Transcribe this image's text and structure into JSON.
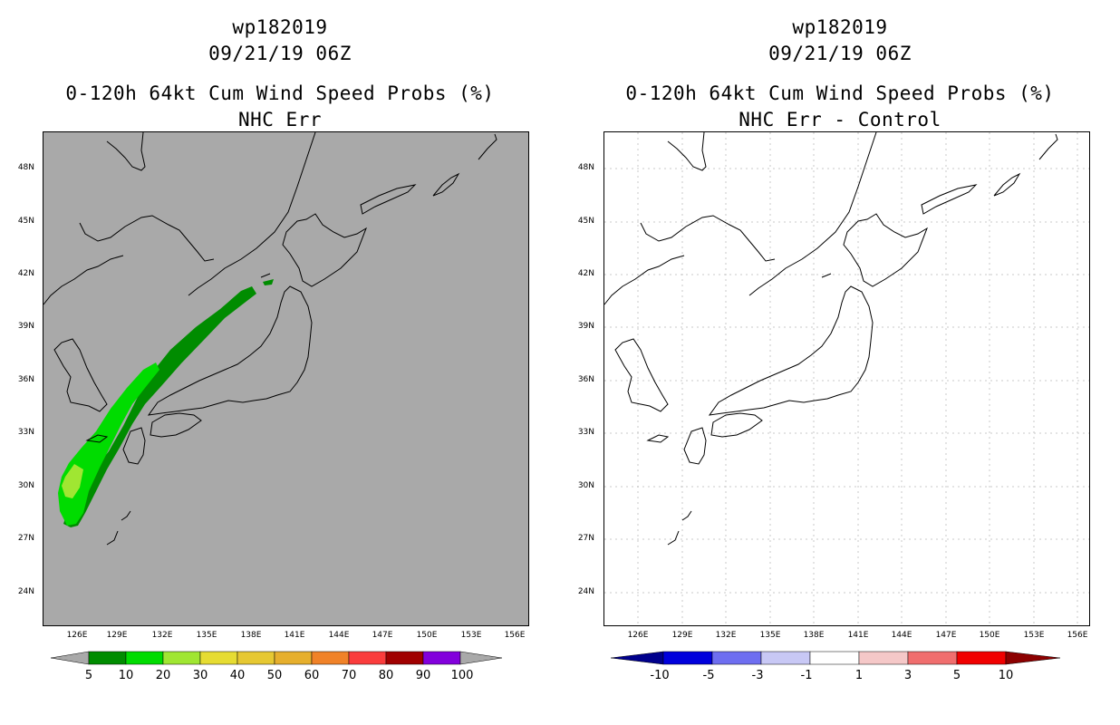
{
  "left_panel": {
    "storm_id": "wp182019",
    "datetime": "09/21/19 06Z",
    "title": "0-120h 64kt Cum Wind Speed Probs (%)",
    "subtitle": "NHC Err",
    "background": "#a9a9a9",
    "colorbar": {
      "labels": [
        "5",
        "10",
        "20",
        "30",
        "40",
        "50",
        "60",
        "70",
        "80",
        "90",
        "100"
      ],
      "colors": [
        "#008c00",
        "#00dc00",
        "#a0e632",
        "#e6dc32",
        "#e6c832",
        "#e6af2d",
        "#f08228",
        "#fa3c3c",
        "#a00000",
        "#8200dc"
      ],
      "end_color": "#a9a9a9"
    }
  },
  "right_panel": {
    "storm_id": "wp182019",
    "datetime": "09/21/19 06Z",
    "title": "0-120h 64kt Cum Wind Speed Probs (%)",
    "subtitle": "NHC Err - Control",
    "background": "#ffffff",
    "colorbar": {
      "labels": [
        "-10",
        "-5",
        "-3",
        "-1",
        "1",
        "3",
        "5",
        "10"
      ],
      "colors": [
        "#0000dc",
        "#6e6ef0",
        "#c8c8f5",
        "#ffffff",
        "#f5c8c8",
        "#f06e6e",
        "#f00000"
      ],
      "low_end_color": "#00008c",
      "high_end_color": "#8c0000"
    }
  },
  "axes": {
    "lat_labels": [
      "48N",
      "45N",
      "42N",
      "39N",
      "36N",
      "33N",
      "30N",
      "27N",
      "24N"
    ],
    "lon_labels": [
      "126E",
      "129E",
      "132E",
      "135E",
      "138E",
      "141E",
      "144E",
      "147E",
      "150E",
      "153E",
      "156E"
    ]
  },
  "probability_swath": {
    "band_10": "#008c00",
    "band_20": "#00dc00",
    "band_30": "#a0e632"
  }
}
